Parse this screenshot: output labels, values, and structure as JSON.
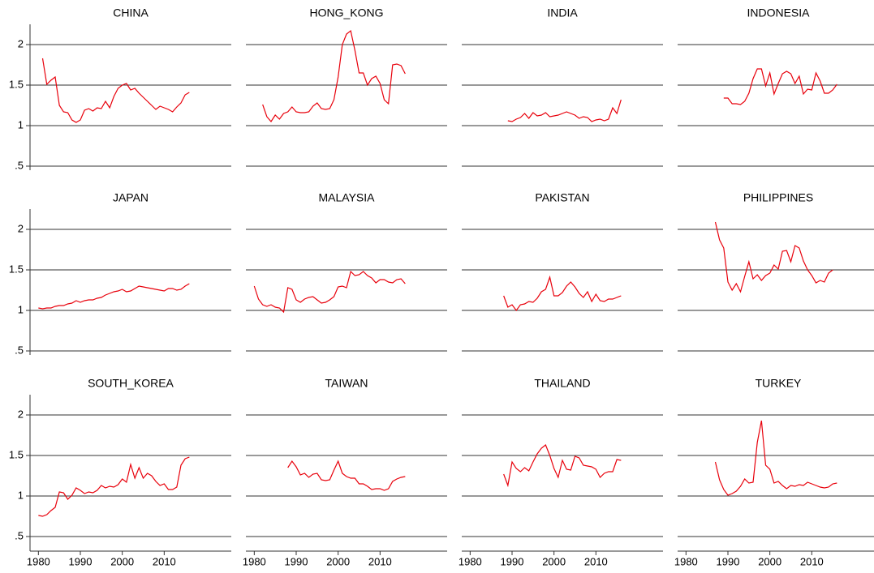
{
  "chart_data": {
    "type": "line",
    "color": "#e8000b",
    "grid": true,
    "xlim": [
      1978,
      2026
    ],
    "xticks": [
      1980,
      1990,
      2000,
      2010
    ],
    "ylim": [
      0.4,
      2.25
    ],
    "yticks": [
      {
        "value": 0.5,
        "label": ".5"
      },
      1,
      1.5,
      2
    ],
    "panels": [
      {
        "title": "CHINA",
        "x": [
          1981,
          1982,
          1983,
          1984,
          1985,
          1986,
          1987,
          1988,
          1989,
          1990,
          1991,
          1992,
          1993,
          1994,
          1995,
          1996,
          1997,
          1998,
          1999,
          2000,
          2001,
          2002,
          2003,
          2004,
          2005,
          2006,
          2007,
          2008,
          2009,
          2010,
          2011,
          2012,
          2013,
          2014,
          2015,
          2016
        ],
        "values": [
          1.83,
          1.51,
          1.56,
          1.6,
          1.25,
          1.17,
          1.16,
          1.07,
          1.04,
          1.07,
          1.19,
          1.21,
          1.18,
          1.22,
          1.21,
          1.3,
          1.22,
          1.36,
          1.46,
          1.5,
          1.52,
          1.44,
          1.46,
          1.4,
          1.35,
          1.3,
          1.25,
          1.2,
          1.24,
          1.22,
          1.2,
          1.17,
          1.23,
          1.28,
          1.38,
          1.41
        ]
      },
      {
        "title": "HONG_KONG",
        "x": [
          1982,
          1983,
          1984,
          1985,
          1986,
          1987,
          1988,
          1989,
          1990,
          1991,
          1992,
          1993,
          1994,
          1995,
          1996,
          1997,
          1998,
          1999,
          2000,
          2001,
          2002,
          2003,
          2004,
          2005,
          2006,
          2007,
          2008,
          2009,
          2010,
          2011,
          2012,
          2013,
          2014,
          2015,
          2016
        ],
        "values": [
          1.26,
          1.11,
          1.05,
          1.13,
          1.08,
          1.15,
          1.17,
          1.23,
          1.17,
          1.16,
          1.16,
          1.17,
          1.24,
          1.28,
          1.21,
          1.2,
          1.21,
          1.32,
          1.6,
          2.0,
          2.13,
          2.17,
          1.93,
          1.65,
          1.65,
          1.5,
          1.58,
          1.61,
          1.52,
          1.32,
          1.27,
          1.75,
          1.76,
          1.74,
          1.64
        ]
      },
      {
        "title": "INDIA",
        "x": [
          1989,
          1990,
          1991,
          1992,
          1993,
          1994,
          1995,
          1996,
          1997,
          1998,
          1999,
          2000,
          2001,
          2002,
          2003,
          2004,
          2005,
          2006,
          2007,
          2008,
          2009,
          2010,
          2011,
          2012,
          2013,
          2014,
          2015,
          2016
        ],
        "values": [
          1.06,
          1.05,
          1.08,
          1.1,
          1.15,
          1.09,
          1.16,
          1.12,
          1.13,
          1.16,
          1.11,
          1.12,
          1.13,
          1.15,
          1.17,
          1.15,
          1.13,
          1.09,
          1.11,
          1.1,
          1.05,
          1.07,
          1.08,
          1.06,
          1.08,
          1.22,
          1.15,
          1.32
        ]
      },
      {
        "title": "INDONESIA",
        "x": [
          1989,
          1990,
          1991,
          1992,
          1993,
          1994,
          1995,
          1996,
          1997,
          1998,
          1999,
          2000,
          2001,
          2002,
          2003,
          2004,
          2005,
          2006,
          2007,
          2008,
          2009,
          2010,
          2011,
          2012,
          2013,
          2014,
          2015,
          2016
        ],
        "values": [
          1.34,
          1.34,
          1.27,
          1.27,
          1.26,
          1.3,
          1.4,
          1.58,
          1.7,
          1.7,
          1.49,
          1.65,
          1.39,
          1.52,
          1.64,
          1.67,
          1.64,
          1.52,
          1.61,
          1.39,
          1.45,
          1.44,
          1.65,
          1.55,
          1.4,
          1.4,
          1.44,
          1.51
        ]
      },
      {
        "title": "JAPAN",
        "x": [
          1980,
          1981,
          1982,
          1983,
          1984,
          1985,
          1986,
          1987,
          1988,
          1989,
          1990,
          1991,
          1992,
          1993,
          1994,
          1995,
          1996,
          1997,
          1998,
          1999,
          2000,
          2001,
          2002,
          2003,
          2004,
          2005,
          2006,
          2007,
          2008,
          2009,
          2010,
          2011,
          2012,
          2013,
          2014,
          2015,
          2016
        ],
        "values": [
          1.03,
          1.02,
          1.03,
          1.03,
          1.05,
          1.06,
          1.06,
          1.08,
          1.09,
          1.12,
          1.1,
          1.12,
          1.13,
          1.13,
          1.15,
          1.16,
          1.19,
          1.21,
          1.23,
          1.24,
          1.26,
          1.23,
          1.24,
          1.27,
          1.3,
          1.29,
          1.28,
          1.27,
          1.26,
          1.25,
          1.24,
          1.27,
          1.27,
          1.25,
          1.26,
          1.3,
          1.33
        ]
      },
      {
        "title": "MALAYSIA",
        "x": [
          1980,
          1981,
          1982,
          1983,
          1984,
          1985,
          1986,
          1987,
          1988,
          1989,
          1990,
          1991,
          1992,
          1993,
          1994,
          1995,
          1996,
          1997,
          1998,
          1999,
          2000,
          2001,
          2002,
          2003,
          2004,
          2005,
          2006,
          2007,
          2008,
          2009,
          2010,
          2011,
          2012,
          2013,
          2014,
          2015,
          2016
        ],
        "values": [
          1.3,
          1.14,
          1.07,
          1.05,
          1.07,
          1.04,
          1.03,
          0.98,
          1.28,
          1.26,
          1.13,
          1.1,
          1.14,
          1.16,
          1.17,
          1.13,
          1.09,
          1.1,
          1.13,
          1.17,
          1.29,
          1.3,
          1.28,
          1.48,
          1.43,
          1.44,
          1.48,
          1.43,
          1.4,
          1.34,
          1.38,
          1.38,
          1.35,
          1.34,
          1.38,
          1.39,
          1.33
        ]
      },
      {
        "title": "PAKISTAN",
        "x": [
          1988,
          1989,
          1990,
          1991,
          1992,
          1993,
          1994,
          1995,
          1996,
          1997,
          1998,
          1999,
          2000,
          2001,
          2002,
          2003,
          2004,
          2005,
          2006,
          2007,
          2008,
          2009,
          2010,
          2011,
          2012,
          2013,
          2014,
          2015,
          2016
        ],
        "values": [
          1.18,
          1.04,
          1.07,
          1.0,
          1.07,
          1.08,
          1.11,
          1.1,
          1.15,
          1.23,
          1.26,
          1.41,
          1.18,
          1.18,
          1.22,
          1.3,
          1.35,
          1.29,
          1.21,
          1.16,
          1.23,
          1.11,
          1.2,
          1.12,
          1.11,
          1.14,
          1.14,
          1.16,
          1.18
        ]
      },
      {
        "title": "PHILIPPINES",
        "x": [
          1987,
          1988,
          1989,
          1990,
          1991,
          1992,
          1993,
          1994,
          1995,
          1996,
          1997,
          1998,
          1999,
          2000,
          2001,
          2002,
          2003,
          2004,
          2005,
          2006,
          2007,
          2008,
          2009,
          2010,
          2011,
          2012,
          2013,
          2014,
          2015
        ],
        "values": [
          2.09,
          1.87,
          1.77,
          1.35,
          1.25,
          1.33,
          1.23,
          1.42,
          1.6,
          1.39,
          1.44,
          1.37,
          1.43,
          1.46,
          1.56,
          1.51,
          1.73,
          1.74,
          1.6,
          1.8,
          1.77,
          1.61,
          1.5,
          1.43,
          1.34,
          1.37,
          1.35,
          1.46,
          1.5
        ]
      },
      {
        "title": "SOUTH_KOREA",
        "x": [
          1980,
          1981,
          1982,
          1983,
          1984,
          1985,
          1986,
          1987,
          1988,
          1989,
          1990,
          1991,
          1992,
          1993,
          1994,
          1995,
          1996,
          1997,
          1998,
          1999,
          2000,
          2001,
          2002,
          2003,
          2004,
          2005,
          2006,
          2007,
          2008,
          2009,
          2010,
          2011,
          2012,
          2013,
          2014,
          2015,
          2016
        ],
        "values": [
          0.76,
          0.75,
          0.77,
          0.82,
          0.86,
          1.05,
          1.04,
          0.96,
          1.01,
          1.1,
          1.07,
          1.03,
          1.05,
          1.04,
          1.07,
          1.13,
          1.1,
          1.12,
          1.11,
          1.14,
          1.21,
          1.17,
          1.39,
          1.22,
          1.35,
          1.22,
          1.28,
          1.25,
          1.18,
          1.13,
          1.15,
          1.08,
          1.08,
          1.11,
          1.38,
          1.46,
          1.48
        ]
      },
      {
        "title": "TAIWAN",
        "x": [
          1988,
          1989,
          1990,
          1991,
          1992,
          1993,
          1994,
          1995,
          1996,
          1997,
          1998,
          1999,
          2000,
          2001,
          2002,
          2003,
          2004,
          2005,
          2006,
          2007,
          2008,
          2009,
          2010,
          2011,
          2012,
          2013,
          2014,
          2015,
          2016
        ],
        "values": [
          1.35,
          1.43,
          1.36,
          1.26,
          1.28,
          1.23,
          1.27,
          1.28,
          1.2,
          1.19,
          1.2,
          1.32,
          1.43,
          1.28,
          1.24,
          1.22,
          1.22,
          1.15,
          1.15,
          1.12,
          1.08,
          1.09,
          1.09,
          1.07,
          1.09,
          1.18,
          1.21,
          1.23,
          1.24
        ]
      },
      {
        "title": "THAILAND",
        "x": [
          1988,
          1989,
          1990,
          1991,
          1992,
          1993,
          1994,
          1995,
          1996,
          1997,
          1998,
          1999,
          2000,
          2001,
          2002,
          2003,
          2004,
          2005,
          2006,
          2007,
          2008,
          2009,
          2010,
          2011,
          2012,
          2013,
          2014,
          2015,
          2016
        ],
        "values": [
          1.27,
          1.13,
          1.42,
          1.34,
          1.3,
          1.35,
          1.31,
          1.42,
          1.52,
          1.59,
          1.63,
          1.5,
          1.34,
          1.23,
          1.44,
          1.33,
          1.32,
          1.49,
          1.47,
          1.38,
          1.37,
          1.36,
          1.33,
          1.23,
          1.28,
          1.3,
          1.3,
          1.45,
          1.44
        ]
      },
      {
        "title": "TURKEY",
        "x": [
          1987,
          1988,
          1989,
          1990,
          1991,
          1992,
          1993,
          1994,
          1995,
          1996,
          1997,
          1998,
          1999,
          2000,
          2001,
          2002,
          2003,
          2004,
          2005,
          2006,
          2007,
          2008,
          2009,
          2010,
          2011,
          2012,
          2013,
          2014,
          2015,
          2016
        ],
        "values": [
          1.42,
          1.2,
          1.08,
          1.01,
          1.03,
          1.06,
          1.12,
          1.21,
          1.16,
          1.17,
          1.66,
          1.93,
          1.38,
          1.33,
          1.16,
          1.18,
          1.13,
          1.09,
          1.13,
          1.12,
          1.14,
          1.13,
          1.17,
          1.15,
          1.13,
          1.11,
          1.1,
          1.11,
          1.15,
          1.16
        ]
      }
    ]
  }
}
